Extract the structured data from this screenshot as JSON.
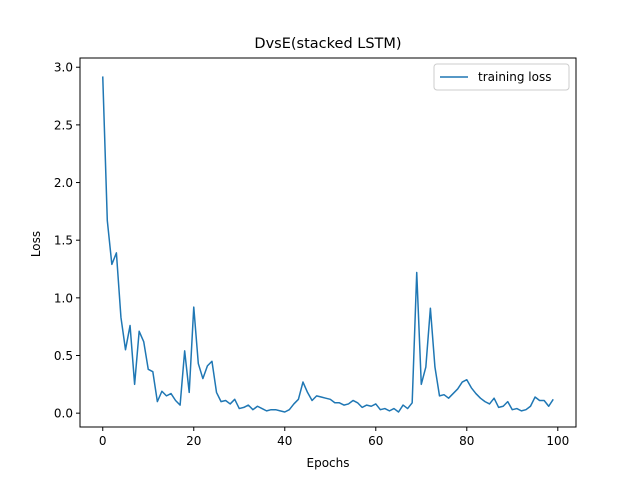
{
  "chart_data": {
    "type": "line",
    "title": "DvsE(stacked LSTM)",
    "xlabel": "Epochs",
    "ylabel": "Loss",
    "xlim": [
      -5,
      104
    ],
    "ylim": [
      -0.12,
      3.08
    ],
    "xticks": [
      0,
      20,
      40,
      60,
      80,
      100
    ],
    "yticks": [
      0.0,
      0.5,
      1.0,
      1.5,
      2.0,
      2.5,
      3.0
    ],
    "xtick_labels": [
      "0",
      "20",
      "40",
      "60",
      "80",
      "100"
    ],
    "ytick_labels": [
      "0.0",
      "0.5",
      "1.0",
      "1.5",
      "2.0",
      "2.5",
      "3.0"
    ],
    "grid": false,
    "legend_position": "top-right",
    "series": [
      {
        "name": "training loss",
        "color": "#1f77b4",
        "x": [
          0,
          1,
          2,
          3,
          4,
          5,
          6,
          7,
          8,
          9,
          10,
          11,
          12,
          13,
          14,
          15,
          16,
          17,
          18,
          19,
          20,
          21,
          22,
          23,
          24,
          25,
          26,
          27,
          28,
          29,
          30,
          31,
          32,
          33,
          34,
          35,
          36,
          37,
          38,
          39,
          40,
          41,
          42,
          43,
          44,
          45,
          46,
          47,
          48,
          49,
          50,
          51,
          52,
          53,
          54,
          55,
          56,
          57,
          58,
          59,
          60,
          61,
          62,
          63,
          64,
          65,
          66,
          67,
          68,
          69,
          70,
          71,
          72,
          73,
          74,
          75,
          76,
          77,
          78,
          79,
          80,
          81,
          82,
          83,
          84,
          85,
          86,
          87,
          88,
          89,
          90,
          91,
          92,
          93,
          94,
          95,
          96,
          97,
          98,
          99
        ],
        "values": [
          2.92,
          1.67,
          1.29,
          1.39,
          0.83,
          0.55,
          0.76,
          0.25,
          0.71,
          0.62,
          0.38,
          0.36,
          0.1,
          0.19,
          0.15,
          0.17,
          0.11,
          0.07,
          0.54,
          0.18,
          0.92,
          0.43,
          0.3,
          0.41,
          0.45,
          0.18,
          0.1,
          0.11,
          0.08,
          0.12,
          0.04,
          0.05,
          0.07,
          0.03,
          0.06,
          0.04,
          0.02,
          0.03,
          0.03,
          0.02,
          0.01,
          0.03,
          0.08,
          0.12,
          0.27,
          0.18,
          0.11,
          0.15,
          0.14,
          0.13,
          0.12,
          0.09,
          0.09,
          0.07,
          0.08,
          0.11,
          0.09,
          0.05,
          0.07,
          0.06,
          0.08,
          0.03,
          0.04,
          0.02,
          0.04,
          0.01,
          0.07,
          0.04,
          0.09,
          1.22,
          0.25,
          0.4,
          0.91,
          0.4,
          0.15,
          0.16,
          0.13,
          0.17,
          0.21,
          0.27,
          0.29,
          0.22,
          0.17,
          0.13,
          0.1,
          0.08,
          0.13,
          0.05,
          0.06,
          0.1,
          0.03,
          0.04,
          0.02,
          0.03,
          0.06,
          0.14,
          0.11,
          0.11,
          0.06,
          0.12
        ]
      }
    ]
  }
}
